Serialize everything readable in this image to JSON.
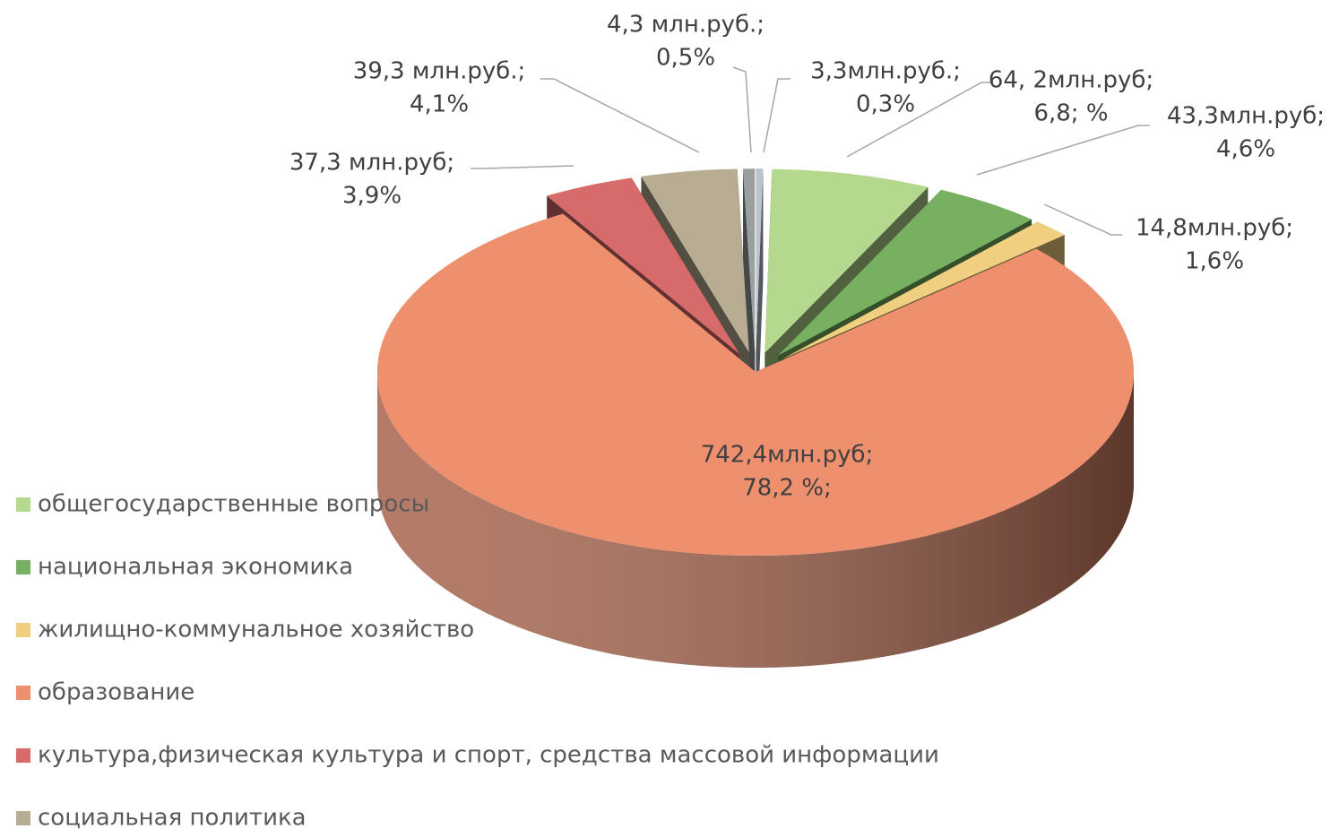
{
  "chart_data": {
    "type": "pie3d",
    "categories": [
      null,
      "общегосударственные вопросы",
      "национальная экономика",
      "жилищно-коммунальное хозяйство",
      "образование",
      "культура,физическая культура и спорт, средства массовой информации",
      "социальная политика",
      null
    ],
    "values": [
      0.3,
      6.8,
      4.6,
      1.6,
      78.2,
      3.9,
      4.1,
      0.5
    ],
    "value_labels": [
      [
        "3,3млн.руб.;",
        "0,3%"
      ],
      [
        "64, 2млн.руб;",
        "6,8; %"
      ],
      [
        "43,3млн.руб;",
        "4,6%"
      ],
      [
        "14,8млн.руб;",
        "1,6%"
      ],
      [
        "742,4млн.руб;",
        "78,2 %;"
      ],
      [
        "37,3 млн.руб;",
        "3,9%"
      ],
      [
        "39,3 млн.руб.;",
        "4,1%"
      ],
      [
        "4,3 млн.руб.;",
        "0,5%"
      ]
    ],
    "colors": [
      "#b9c3cc",
      "#b5d88f",
      "#77b060",
      "#f0cf80",
      "#ee8f6e",
      "#d76a6a",
      "#b8ad93",
      "#9aa0a0"
    ],
    "legend": "bottom-left"
  }
}
